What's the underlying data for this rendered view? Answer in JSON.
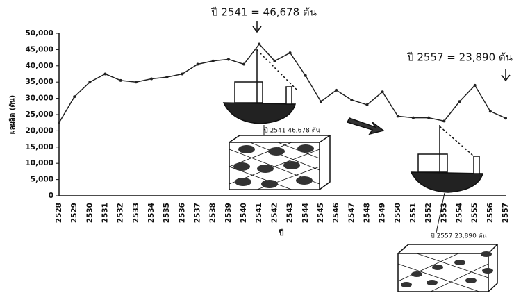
{
  "chart_data": {
    "type": "line",
    "y_label": "ผลผลิต (ตัน)",
    "x_label": "ปี",
    "categories": [
      "2528",
      "2529",
      "2530",
      "2531",
      "2532",
      "2533",
      "2534",
      "2535",
      "2536",
      "2537",
      "2538",
      "2539",
      "2540",
      "2541",
      "2542",
      "2543",
      "2544",
      "2545",
      "2546",
      "2547",
      "2548",
      "2549",
      "2550",
      "2551",
      "2552",
      "2553",
      "2554",
      "2555",
      "2556",
      "2557"
    ],
    "values": [
      22500,
      30500,
      35000,
      37500,
      35500,
      35000,
      36000,
      36500,
      37500,
      40500,
      41500,
      42000,
      40500,
      46678,
      41500,
      44000,
      37000,
      29000,
      32500,
      29500,
      28000,
      32000,
      24500,
      24000,
      24000,
      23000,
      29000,
      34000,
      26000,
      23890
    ],
    "color": "#222222",
    "ylim": [
      0,
      50000
    ],
    "yticks": [
      0,
      {
        "value": 5000,
        "label": "5,000"
      },
      {
        "value": 10000,
        "label": "10,000"
      },
      {
        "value": 15000,
        "label": "15,000"
      },
      {
        "value": 20000,
        "label": "20,000"
      },
      {
        "value": 25000,
        "label": "25,000"
      },
      {
        "value": 30000,
        "label": "30,000"
      },
      {
        "value": 35000,
        "label": "35,000"
      },
      {
        "value": 40000,
        "label": "40,000"
      },
      {
        "value": 45000,
        "label": "45,000"
      },
      {
        "value": 50000,
        "label": "50,000"
      }
    ],
    "grid": false,
    "annotations": [
      "ปี 2541 = 46,678 ตัน",
      "ปี 2557 = 23,890 ตัน",
      "ปี 2541 46,678 ตัน",
      "ปี 2557 23,890 ตัน"
    ]
  }
}
